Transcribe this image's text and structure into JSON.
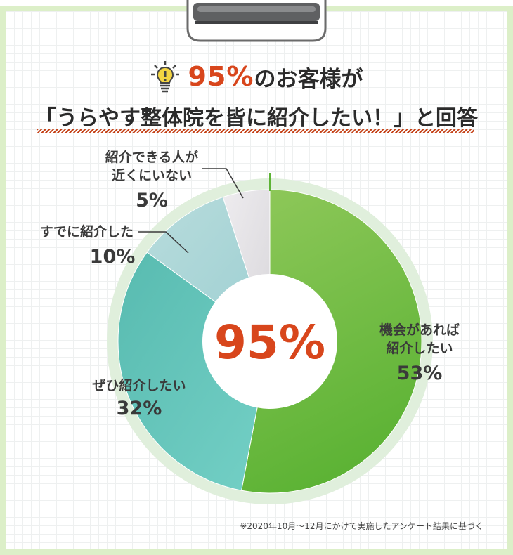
{
  "headline": {
    "percent": "95%",
    "rest": "のお客様が"
  },
  "subhead": "「うらやす整体院を皆に紹介したい！」と回答",
  "icons": [
    "lightbulb-icon",
    "clipboard-clip-icon"
  ],
  "colors": {
    "accent": "#d8461c",
    "border": "#dcefc8",
    "slice_green": "#6cbf3c",
    "slice_teal": "#5fc4b8",
    "slice_lightblue": "#a9d7d8",
    "slice_gray": "#e2e0e3"
  },
  "chart_data": {
    "type": "pie",
    "style": "donut",
    "categories": [
      "機会があれば紹介したい",
      "ぜひ紹介したい",
      "すでに紹介した",
      "紹介できる人が近くにいない"
    ],
    "values": [
      53,
      32,
      10,
      5
    ],
    "unit": "%",
    "labels": [
      {
        "lines": [
          "機会があれば",
          "紹介したい"
        ],
        "value": "53%"
      },
      {
        "lines": [
          "ぜひ紹介したい"
        ],
        "value": "32%"
      },
      {
        "lines": [
          "すでに紹介した"
        ],
        "value": "10%"
      },
      {
        "lines": [
          "紹介できる人が",
          "近くにいない"
        ],
        "value": "5%"
      }
    ],
    "center_label": "95%"
  },
  "footnote": "※2020年10月～12月にかけて実施したアンケート結果に基づく"
}
